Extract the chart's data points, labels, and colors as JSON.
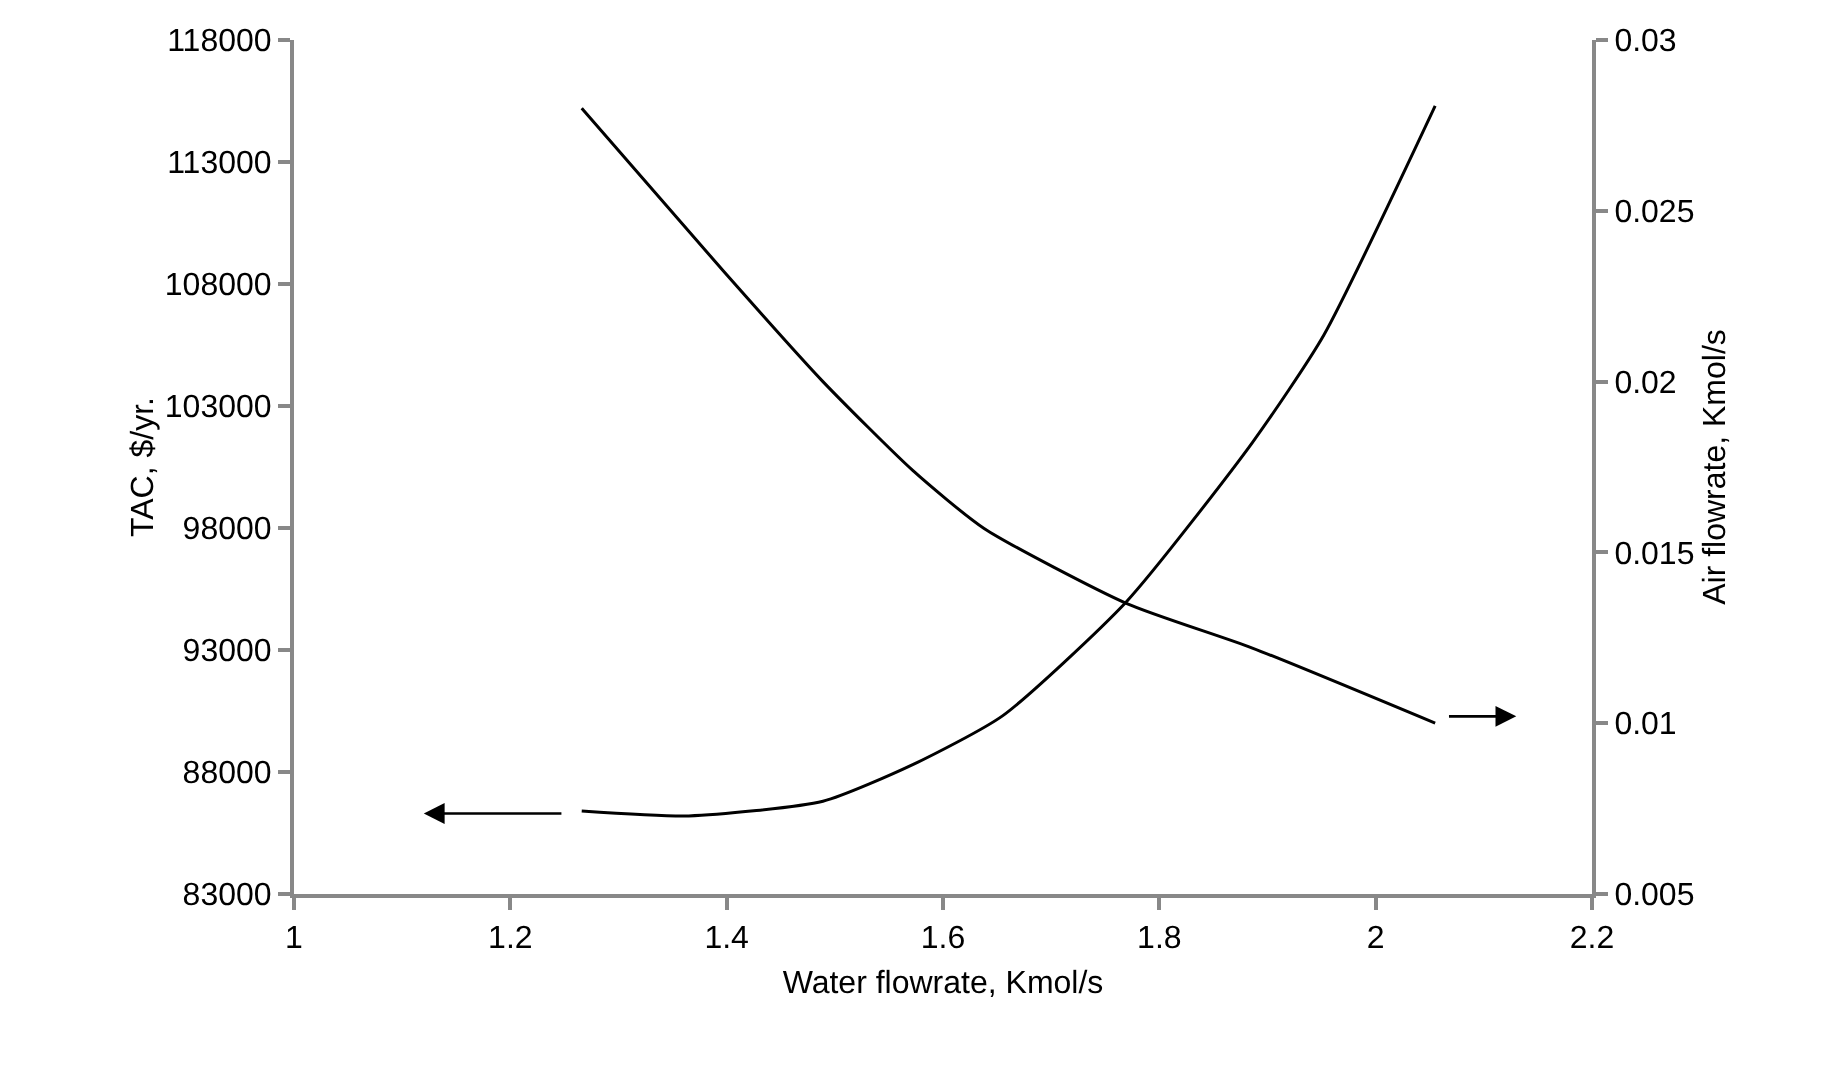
{
  "chart_data": {
    "type": "line",
    "xlabel": "Water flowrate, Kmol/s",
    "ylabel": "TAC, $/yr.",
    "y2label": "Air flowrate, Kmol/s",
    "xlim": [
      1,
      2.2
    ],
    "xticks": [
      1,
      1.2,
      1.4,
      1.6,
      1.8,
      2,
      2.2
    ],
    "ylim": [
      83000,
      118000
    ],
    "yticks": [
      83000,
      88000,
      93000,
      98000,
      103000,
      108000,
      113000,
      118000
    ],
    "y2lim": [
      0.005,
      0.03
    ],
    "y2ticks": [
      0.005,
      0.01,
      0.015,
      0.02,
      0.025,
      0.03
    ],
    "marker": "none",
    "line_style": "solid",
    "series": [
      {
        "color": "#000000",
        "x": [
          1.266,
          1.365,
          1.489,
          1.572,
          1.655,
          1.77,
          1.886,
          1.952,
          2.055
        ],
        "values": [
          86400,
          86200,
          86800,
          88300,
          90300,
          95000,
          101500,
          105900,
          115300
        ]
      },
      {
        "color": "#000000",
        "axis": "y2",
        "x": [
          1.266,
          1.398,
          1.489,
          1.572,
          1.638,
          1.77,
          1.886,
          2.055
        ],
        "values": [
          0.028,
          0.0232,
          0.02,
          0.0174,
          0.0157,
          0.0135,
          0.0122,
          0.01
        ]
      }
    ]
  }
}
